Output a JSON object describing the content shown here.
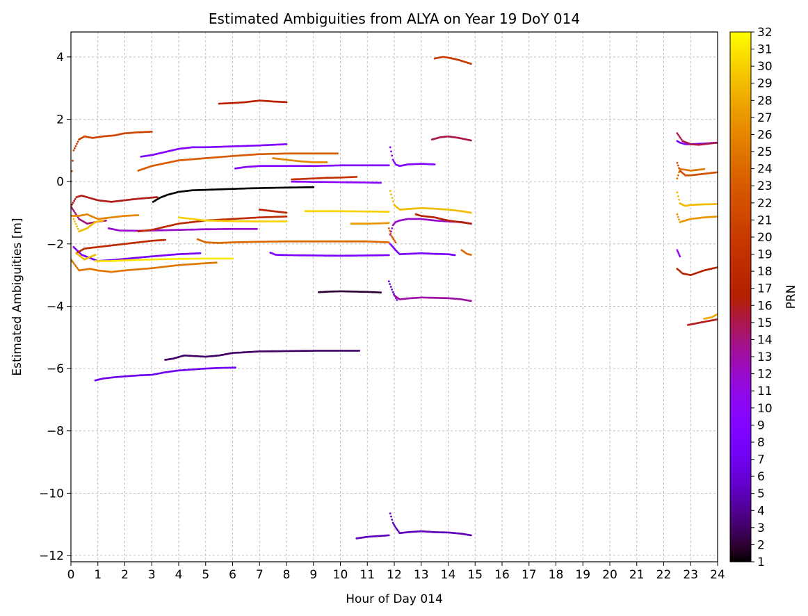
{
  "chart_data": {
    "type": "scatter",
    "title": "Estimated Ambiguities from ALYA on Year 19 DoY 014",
    "xlabel": "Hour of Day 014",
    "ylabel": "Estimated Ambiguities [m]",
    "xlim": [
      0,
      24
    ],
    "ylim": [
      -12.2,
      4.8
    ],
    "x_ticks": [
      0,
      1,
      2,
      3,
      4,
      5,
      6,
      7,
      8,
      9,
      10,
      11,
      12,
      13,
      14,
      15,
      16,
      17,
      18,
      19,
      20,
      21,
      22,
      23,
      24
    ],
    "y_ticks": [
      4,
      2,
      0,
      -2,
      -4,
      -6,
      -8,
      -10,
      -12
    ],
    "y_tick_labels": [
      "4",
      "2",
      "0",
      "−2",
      "−4",
      "−6",
      "−8",
      "−10",
      "−12"
    ],
    "grid": true,
    "colorbar": {
      "label": "PRN",
      "colormap": "gnuplot",
      "min": 1,
      "max": 32,
      "ticks": [
        1,
        2,
        3,
        4,
        5,
        6,
        7,
        8,
        9,
        10,
        11,
        12,
        13,
        14,
        15,
        16,
        17,
        18,
        19,
        20,
        21,
        22,
        23,
        24,
        25,
        26,
        27,
        28,
        29,
        30,
        31,
        32
      ]
    },
    "series": [
      {
        "prn": 1,
        "x": [
          3.05,
          3.3,
          3.6,
          4.0,
          4.5,
          5.5,
          6.5,
          7.5,
          8.2,
          9.0
        ],
        "y": [
          -0.65,
          -0.52,
          -0.42,
          -0.33,
          -0.28,
          -0.25,
          -0.22,
          -0.2,
          -0.19,
          -0.18
        ]
      },
      {
        "prn": 2,
        "x": [
          9.2,
          9.6,
          10.0,
          10.5,
          11.0,
          11.5
        ],
        "y": [
          -3.55,
          -3.53,
          -3.52,
          -3.53,
          -3.54,
          -3.56
        ]
      },
      {
        "prn": 3,
        "x": [
          3.5,
          3.8,
          4.2,
          4.6,
          5.0,
          5.5,
          6.0,
          7.0,
          8.0,
          9.0,
          10.7
        ],
        "y": [
          -5.72,
          -5.68,
          -5.58,
          -5.6,
          -5.62,
          -5.58,
          -5.5,
          -5.45,
          -5.44,
          -5.43,
          -5.43
        ]
      },
      {
        "prn": 5,
        "x": [
          10.6,
          11.0,
          11.5,
          11.8
        ],
        "y": [
          -11.45,
          -11.4,
          -11.37,
          -11.35
        ]
      },
      {
        "prn": 5,
        "x": [
          11.85,
          11.95,
          12.05,
          12.2,
          12.5,
          13.0,
          13.5,
          14.0,
          14.5,
          14.85
        ],
        "y": [
          -10.65,
          -10.95,
          -11.1,
          -11.28,
          -11.25,
          -11.22,
          -11.25,
          -11.26,
          -11.3,
          -11.35
        ]
      },
      {
        "prn": 6,
        "x": [
          11.8,
          11.95,
          12.1
        ],
        "y": [
          -3.2,
          -3.55,
          -3.8
        ]
      },
      {
        "prn": 7,
        "x": [
          0.9,
          1.2,
          1.6,
          2.0,
          2.5,
          3.0,
          3.5,
          4.0,
          4.5,
          5.0,
          5.5,
          6.1
        ],
        "y": [
          -6.38,
          -6.32,
          -6.28,
          -6.25,
          -6.22,
          -6.2,
          -6.12,
          -6.06,
          -6.03,
          -6.0,
          -5.98,
          -5.97
        ]
      },
      {
        "prn": 8,
        "x": [
          0.1,
          0.4,
          0.7,
          1.0,
          1.5,
          2.0,
          3.0,
          4.0,
          4.8
        ],
        "y": [
          -2.1,
          -2.35,
          -2.45,
          -2.55,
          -2.52,
          -2.48,
          -2.4,
          -2.33,
          -2.3
        ]
      },
      {
        "prn": 8,
        "x": [
          7.4,
          7.6,
          8.0,
          9.0,
          10.0,
          11.0,
          11.8
        ],
        "y": [
          -2.28,
          -2.35,
          -2.36,
          -2.37,
          -2.38,
          -2.37,
          -2.36
        ]
      },
      {
        "prn": 8,
        "x": [
          11.85,
          11.95,
          12.05,
          12.2,
          12.5,
          13.0,
          13.5,
          14.0,
          14.25
        ],
        "y": [
          -2.0,
          -2.1,
          -2.2,
          -2.33,
          -2.32,
          -2.3,
          -2.32,
          -2.33,
          -2.36
        ]
      },
      {
        "prn": 9,
        "x": [
          2.6,
          3.0,
          3.5,
          4.0,
          4.5,
          5.0,
          6.0,
          7.0,
          8.0
        ],
        "y": [
          0.8,
          0.85,
          0.95,
          1.05,
          1.1,
          1.1,
          1.13,
          1.16,
          1.2
        ]
      },
      {
        "prn": 9,
        "x": [
          6.1,
          6.5,
          7.0,
          8.0,
          9.0,
          10.0,
          11.0,
          11.8
        ],
        "y": [
          0.42,
          0.47,
          0.5,
          0.5,
          0.5,
          0.52,
          0.52,
          0.52
        ]
      },
      {
        "prn": 9,
        "x": [
          11.85,
          11.95,
          12.05,
          12.2,
          12.5,
          13.0,
          13.5
        ],
        "y": [
          1.1,
          0.7,
          0.55,
          0.5,
          0.55,
          0.57,
          0.55
        ]
      },
      {
        "prn": 9,
        "x": [
          22.5,
          22.6,
          22.8,
          23.0,
          23.5,
          24.0
        ],
        "y": [
          1.3,
          1.25,
          1.2,
          1.2,
          1.22,
          1.25
        ]
      },
      {
        "prn": 10,
        "x": [
          8.2,
          9.0,
          10.0,
          11.0,
          11.5
        ],
        "y": [
          0.0,
          -0.01,
          -0.02,
          -0.03,
          -0.04
        ]
      },
      {
        "prn": 10,
        "x": [
          22.5,
          22.55,
          22.6
        ],
        "y": [
          -2.2,
          -2.3,
          -2.4
        ]
      },
      {
        "prn": 12,
        "x": [
          1.4,
          1.8,
          2.5,
          3.0,
          4.0,
          5.0,
          6.0,
          6.9
        ],
        "y": [
          -1.5,
          -1.57,
          -1.58,
          -1.57,
          -1.55,
          -1.53,
          -1.52,
          -1.52
        ]
      },
      {
        "prn": 12,
        "x": [
          11.85,
          11.95,
          12.05,
          12.2,
          12.5,
          13.0,
          13.5,
          14.0,
          14.5,
          14.85
        ],
        "y": [
          -1.7,
          -1.4,
          -1.3,
          -1.25,
          -1.2,
          -1.2,
          -1.25,
          -1.28,
          -1.3,
          -1.35
        ]
      },
      {
        "prn": 13,
        "x": [
          12.0,
          12.2,
          12.5,
          13.0,
          13.5,
          14.0,
          14.5,
          14.85
        ],
        "y": [
          -3.65,
          -3.78,
          -3.75,
          -3.72,
          -3.73,
          -3.74,
          -3.78,
          -3.83
        ]
      },
      {
        "prn": 14,
        "x": [
          0.0,
          0.3,
          0.6,
          0.9,
          1.3
        ],
        "y": [
          -0.8,
          -1.2,
          -1.35,
          -1.3,
          -1.25
        ]
      },
      {
        "prn": 15,
        "x": [
          13.4,
          13.7,
          14.0,
          14.4,
          14.85
        ],
        "y": [
          1.35,
          1.42,
          1.45,
          1.4,
          1.32
        ]
      },
      {
        "prn": 15,
        "x": [
          22.5,
          22.7,
          23.0,
          23.3,
          23.7,
          24.0
        ],
        "y": [
          1.55,
          1.3,
          1.2,
          1.18,
          1.22,
          1.25
        ]
      },
      {
        "prn": 16,
        "x": [
          0.0,
          0.2,
          0.4,
          0.6,
          1.0,
          1.5,
          2.0,
          2.5,
          3.2
        ],
        "y": [
          -0.8,
          -0.5,
          -0.45,
          -0.5,
          -0.6,
          -0.65,
          -0.6,
          -0.55,
          -0.5
        ]
      },
      {
        "prn": 16,
        "x": [
          22.9,
          23.2,
          23.5,
          24.0
        ],
        "y": [
          -4.6,
          -4.55,
          -4.5,
          -4.42
        ]
      },
      {
        "prn": 17,
        "x": [
          5.5,
          6.0,
          6.5,
          7.0,
          7.5,
          8.0
        ],
        "y": [
          2.5,
          2.52,
          2.55,
          2.6,
          2.57,
          2.55
        ]
      },
      {
        "prn": 17,
        "x": [
          7.0,
          7.5,
          8.0
        ],
        "y": [
          -0.9,
          -0.95,
          -1.0
        ]
      },
      {
        "prn": 17,
        "x": [
          12.8,
          13.0,
          13.5,
          14.0,
          14.85
        ],
        "y": [
          -1.05,
          -1.1,
          -1.15,
          -1.25,
          -1.35
        ]
      },
      {
        "prn": 17,
        "x": [
          22.5,
          22.7,
          23.0,
          23.5,
          24.0
        ],
        "y": [
          -2.8,
          -2.95,
          -3.0,
          -2.85,
          -2.75
        ]
      },
      {
        "prn": 18,
        "x": [
          0.2,
          0.5,
          1.0,
          1.5,
          2.0,
          2.5,
          3.0,
          3.5
        ],
        "y": [
          -2.3,
          -2.15,
          -2.1,
          -2.05,
          -2.0,
          -1.95,
          -1.9,
          -1.87
        ]
      },
      {
        "prn": 18,
        "x": [
          2.5,
          3.0,
          3.5,
          4.0,
          5.0,
          6.0,
          7.0,
          8.0
        ],
        "y": [
          -1.6,
          -1.55,
          -1.45,
          -1.35,
          -1.25,
          -1.2,
          -1.15,
          -1.12
        ]
      },
      {
        "prn": 19,
        "x": [
          8.2,
          8.5,
          9.0,
          9.5,
          10.0,
          10.6
        ],
        "y": [
          0.07,
          0.08,
          0.1,
          0.12,
          0.13,
          0.15
        ]
      },
      {
        "prn": 20,
        "x": [
          13.5,
          13.8,
          14.0,
          14.4,
          14.85
        ],
        "y": [
          3.95,
          4.0,
          3.98,
          3.9,
          3.78
        ]
      },
      {
        "prn": 21,
        "x": [
          0.0,
          0.1,
          0.3,
          0.5,
          0.8,
          1.2,
          1.6,
          2.0,
          2.5,
          3.0
        ],
        "y": [
          0.0,
          1.0,
          1.35,
          1.45,
          1.4,
          1.45,
          1.48,
          1.55,
          1.58,
          1.6
        ]
      },
      {
        "prn": 22,
        "x": [
          22.5,
          22.6,
          22.8,
          23.0,
          23.5,
          24.0
        ],
        "y": [
          0.6,
          0.35,
          0.2,
          0.2,
          0.25,
          0.3
        ]
      },
      {
        "prn": 23,
        "x": [
          2.5,
          3.0,
          4.0,
          5.0,
          6.0,
          7.0,
          8.0,
          9.9
        ],
        "y": [
          0.35,
          0.5,
          0.68,
          0.75,
          0.82,
          0.88,
          0.9,
          0.9
        ]
      },
      {
        "prn": 23,
        "x": [
          11.8,
          11.9,
          12.05
        ],
        "y": [
          -1.5,
          -1.75,
          -1.95
        ]
      },
      {
        "prn": 24,
        "x": [
          4.7,
          5.0,
          5.5,
          6.0,
          7.0,
          8.0,
          9.0,
          10.0,
          11.0,
          11.8
        ],
        "y": [
          -1.85,
          -1.95,
          -1.97,
          -1.95,
          -1.93,
          -1.92,
          -1.92,
          -1.92,
          -1.92,
          -1.95
        ]
      },
      {
        "prn": 24,
        "x": [
          14.5,
          14.7,
          14.85
        ],
        "y": [
          -2.2,
          -2.32,
          -2.35
        ]
      },
      {
        "prn": 25,
        "x": [
          0.0,
          0.3,
          0.7,
          1.0,
          1.5,
          2.0,
          3.0,
          4.0,
          5.0,
          5.4
        ],
        "y": [
          -2.5,
          -2.85,
          -2.8,
          -2.85,
          -2.9,
          -2.85,
          -2.78,
          -2.68,
          -2.62,
          -2.6
        ]
      },
      {
        "prn": 25,
        "x": [
          22.5,
          22.6,
          22.8,
          23.0,
          23.3,
          23.5
        ],
        "y": [
          0.1,
          0.4,
          0.38,
          0.35,
          0.38,
          0.4
        ]
      },
      {
        "prn": 26,
        "x": [
          0.0,
          0.3,
          0.6,
          1.0,
          1.5,
          2.0,
          2.5
        ],
        "y": [
          -1.1,
          -1.1,
          -1.05,
          -1.2,
          -1.15,
          -1.1,
          -1.08
        ]
      },
      {
        "prn": 26,
        "x": [
          7.5,
          8.0,
          8.5,
          9.0,
          9.5
        ],
        "y": [
          0.75,
          0.7,
          0.65,
          0.62,
          0.62
        ]
      },
      {
        "prn": 27,
        "x": [
          10.4,
          11.0,
          11.5,
          11.8
        ],
        "y": [
          -1.35,
          -1.35,
          -1.34,
          -1.33
        ]
      },
      {
        "prn": 27,
        "x": [
          22.5,
          22.6,
          22.8,
          23.0,
          23.5,
          24.0
        ],
        "y": [
          -1.05,
          -1.3,
          -1.25,
          -1.2,
          -1.15,
          -1.12
        ]
      },
      {
        "prn": 28,
        "x": [
          23.5,
          23.8,
          24.0
        ],
        "y": [
          -4.4,
          -4.35,
          -4.25
        ]
      },
      {
        "prn": 29,
        "x": [
          0.2,
          0.5,
          0.9
        ],
        "y": [
          -2.3,
          -2.5,
          -2.35
        ]
      },
      {
        "prn": 29,
        "x": [
          11.85,
          12.0,
          12.2,
          12.5,
          13.0,
          13.5,
          14.0,
          14.5,
          14.85
        ],
        "y": [
          -0.3,
          -0.75,
          -0.9,
          -0.88,
          -0.85,
          -0.87,
          -0.9,
          -0.95,
          -1.0
        ]
      },
      {
        "prn": 29,
        "x": [
          22.5,
          22.6,
          22.8,
          23.0,
          23.5,
          24.0
        ],
        "y": [
          -0.35,
          -0.7,
          -0.78,
          -0.75,
          -0.73,
          -0.72
        ]
      },
      {
        "prn": 29,
        "x": [
          0.1,
          0.3,
          0.6,
          0.9,
          1.2
        ],
        "y": [
          -1.2,
          -1.6,
          -1.5,
          -1.3,
          -1.25
        ]
      },
      {
        "prn": 30,
        "x": [
          4.0,
          4.5,
          5.0,
          6.0,
          7.0,
          8.0
        ],
        "y": [
          -1.15,
          -1.2,
          -1.25,
          -1.27,
          -1.28,
          -1.28
        ]
      },
      {
        "prn": 30,
        "x": [
          8.7,
          9.0,
          10.0,
          11.0,
          11.8
        ],
        "y": [
          -0.95,
          -0.95,
          -0.95,
          -0.96,
          -0.97
        ]
      },
      {
        "prn": 31,
        "x": [
          0.9,
          1.5,
          2.0,
          3.0,
          4.0,
          5.0,
          6.0
        ],
        "y": [
          -2.55,
          -2.55,
          -2.53,
          -2.5,
          -2.48,
          -2.47,
          -2.47
        ]
      }
    ]
  }
}
